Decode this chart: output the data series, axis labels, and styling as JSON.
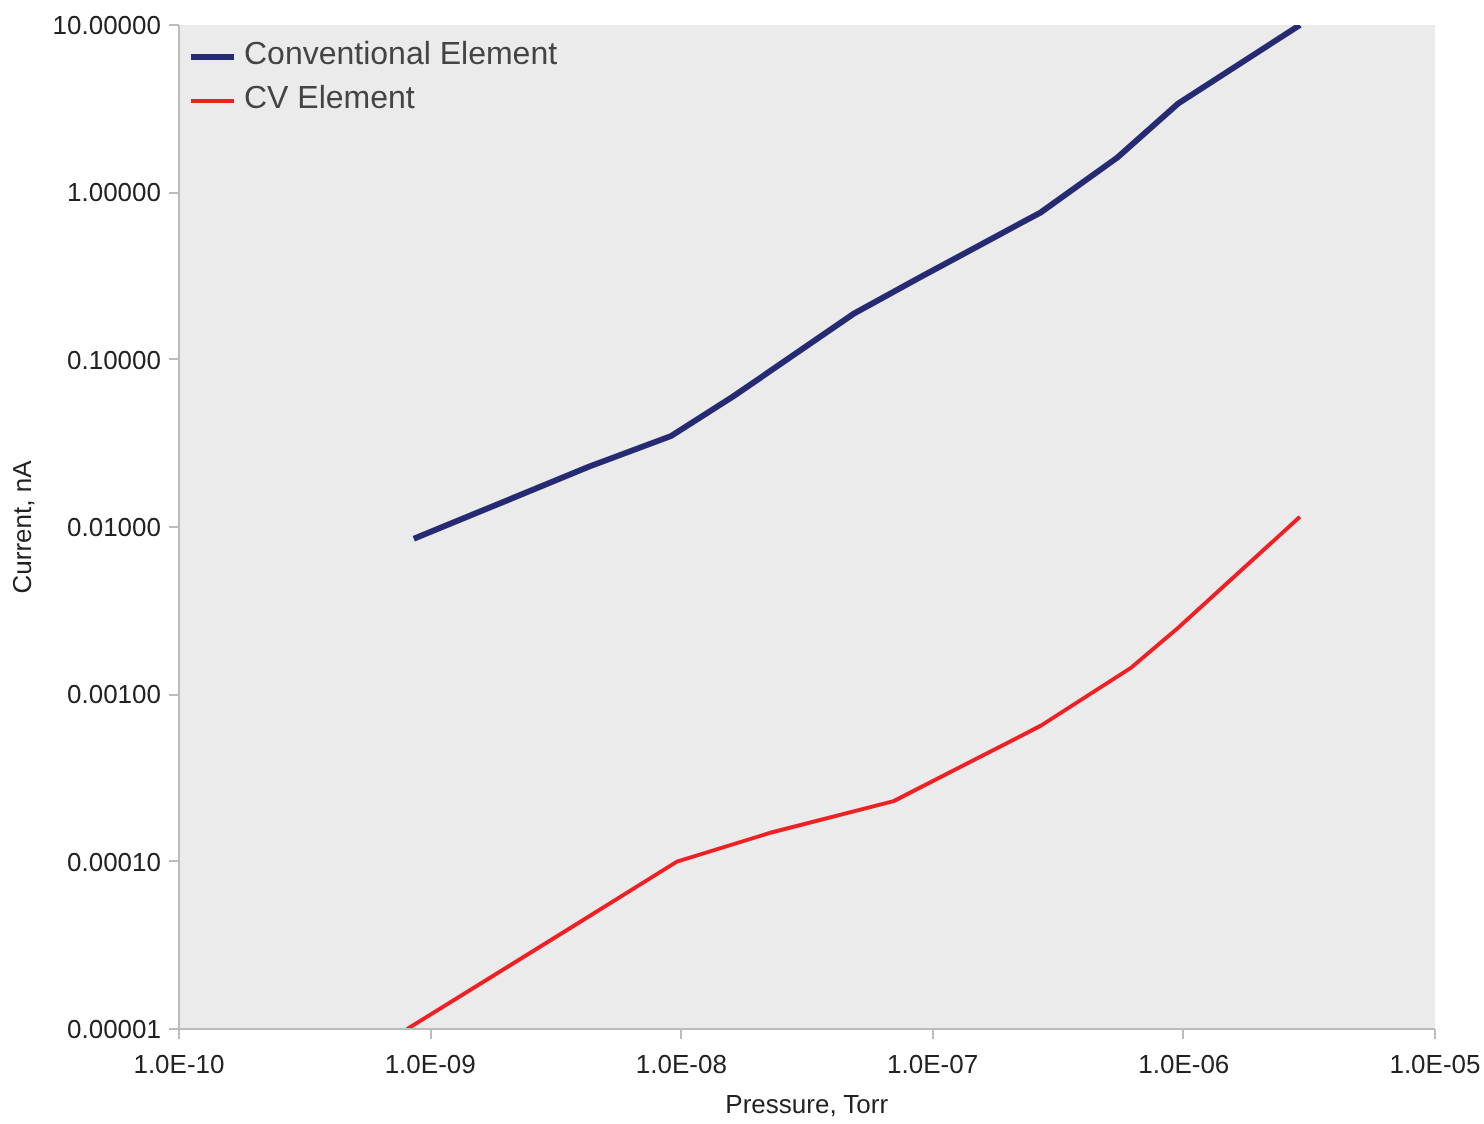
{
  "chart_data": {
    "type": "line",
    "xlabel": "Pressure, Torr",
    "ylabel": "Current, nA",
    "log": "xy",
    "grid": false,
    "legend": "top left",
    "line_style": "solid",
    "marker": "none",
    "xlim": [
      1e-10,
      1e-05
    ],
    "xticks": [
      {
        "value": 1e-10,
        "label": "1.0E-10"
      },
      {
        "value": 1e-09,
        "label": "1.0E-09"
      },
      {
        "value": 1e-08,
        "label": "1.0E-08"
      },
      {
        "value": 1e-07,
        "label": "1.0E-07"
      },
      {
        "value": 1e-06,
        "label": "1.0E-06"
      },
      {
        "value": 1e-05,
        "label": "1.0E-05"
      }
    ],
    "ylim": [
      1e-05,
      10
    ],
    "yticks": [
      {
        "value": 1e-05,
        "label": "0.00001"
      },
      {
        "value": 0.0001,
        "label": "0.00010"
      },
      {
        "value": 0.001,
        "label": "0.00100"
      },
      {
        "value": 0.01,
        "label": "0.01000"
      },
      {
        "value": 0.1,
        "label": "0.10000"
      },
      {
        "value": 1,
        "label": "1.00000"
      },
      {
        "value": 10,
        "label": "10.00000"
      }
    ],
    "series": [
      {
        "name": "Conventional Element",
        "color": "#262a73",
        "x": [
          8.6e-10,
          4.3e-09,
          9.1e-09,
          1.6e-08,
          4.9e-08,
          8.9e-08,
          2.7e-07,
          5.4e-07,
          9.5e-07,
          2.9e-06
        ],
        "values": [
          0.0085,
          0.023,
          0.035,
          0.06,
          0.19,
          0.31,
          0.76,
          1.6,
          3.4,
          10
        ]
      },
      {
        "name": "CV Element",
        "color": "#ee2024",
        "x": [
          8.1e-10,
          3.6e-09,
          9.6e-09,
          2.3e-08,
          7e-08,
          2.7e-07,
          6.2e-07,
          9.5e-07,
          2.9e-06
        ],
        "values": [
          1e-05,
          4e-05,
          0.0001,
          0.00015,
          0.00023,
          0.00065,
          0.00145,
          0.0025,
          0.0115
        ]
      }
    ]
  }
}
